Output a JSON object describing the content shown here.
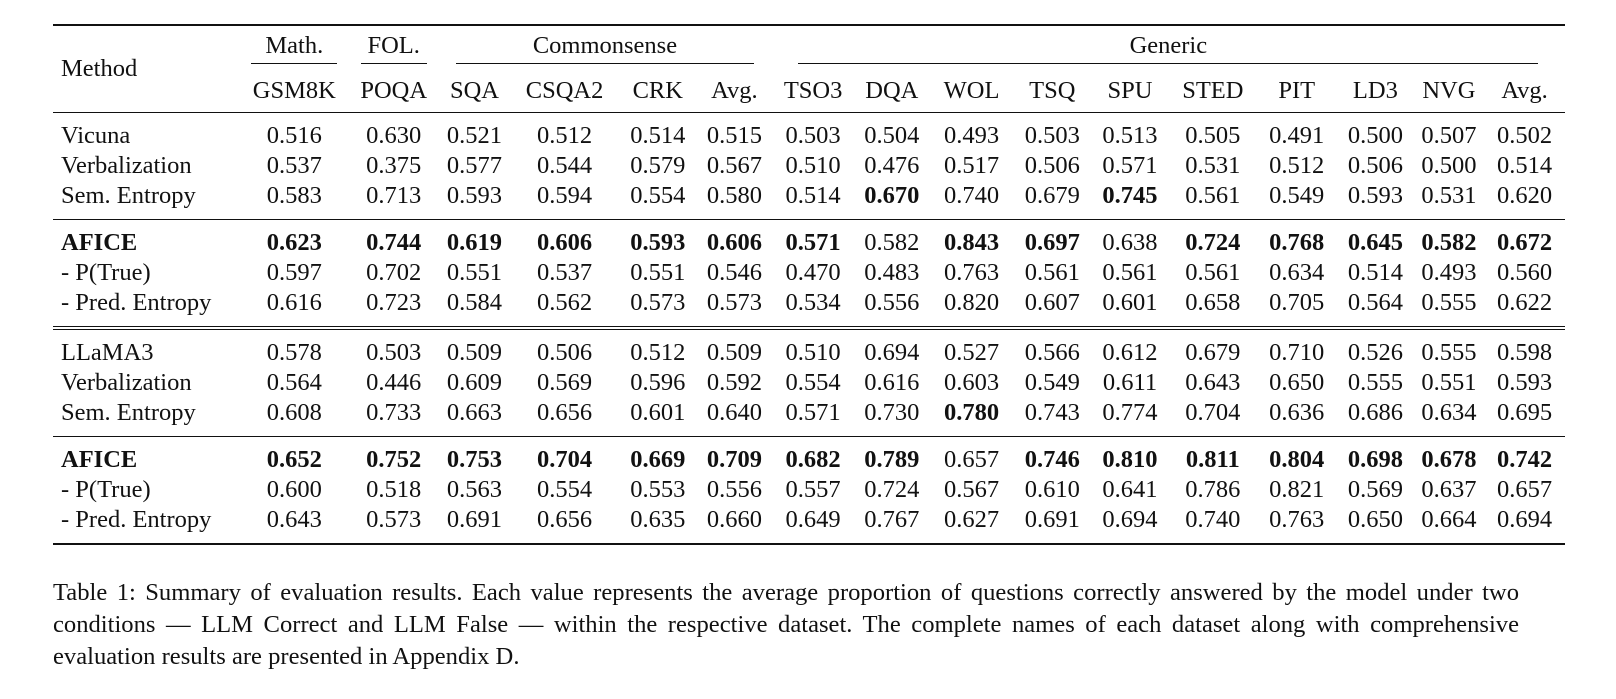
{
  "table": {
    "method_header": "Method",
    "groups": [
      {
        "label": "Math.",
        "span": 1
      },
      {
        "label": "FOL.",
        "span": 1
      },
      {
        "label": "Commonsense",
        "span": 4
      },
      {
        "label": "Generic",
        "span": 10
      }
    ],
    "columns": [
      "GSM8K",
      "POQA",
      "SQA",
      "CSQA2",
      "CRK",
      "Avg.",
      "TSO3",
      "DQA",
      "WOL",
      "TSQ",
      "SPU",
      "STED",
      "PIT",
      "LD3",
      "NVG",
      "Avg."
    ],
    "blocks": [
      [
        {
          "method": "Vicuna",
          "bold": false,
          "values": [
            "0.516",
            "0.630",
            "0.521",
            "0.512",
            "0.514",
            "0.515",
            "0.503",
            "0.504",
            "0.493",
            "0.503",
            "0.513",
            "0.505",
            "0.491",
            "0.500",
            "0.507",
            "0.502"
          ],
          "bold_cells": []
        },
        {
          "method": "Verbalization",
          "bold": false,
          "values": [
            "0.537",
            "0.375",
            "0.577",
            "0.544",
            "0.579",
            "0.567",
            "0.510",
            "0.476",
            "0.517",
            "0.506",
            "0.571",
            "0.531",
            "0.512",
            "0.506",
            "0.500",
            "0.514"
          ],
          "bold_cells": []
        },
        {
          "method": "Sem. Entropy",
          "bold": false,
          "values": [
            "0.583",
            "0.713",
            "0.593",
            "0.594",
            "0.554",
            "0.580",
            "0.514",
            "0.670",
            "0.740",
            "0.679",
            "0.745",
            "0.561",
            "0.549",
            "0.593",
            "0.531",
            "0.620"
          ],
          "bold_cells": [
            7,
            10
          ]
        }
      ],
      [
        {
          "method": "AFICE",
          "bold": true,
          "values": [
            "0.623",
            "0.744",
            "0.619",
            "0.606",
            "0.593",
            "0.606",
            "0.571",
            "0.582",
            "0.843",
            "0.697",
            "0.638",
            "0.724",
            "0.768",
            "0.645",
            "0.582",
            "0.672"
          ],
          "bold_cells": [
            0,
            1,
            2,
            3,
            4,
            5,
            6,
            8,
            9,
            11,
            12,
            13,
            14,
            15
          ]
        },
        {
          "method": "- P(True)",
          "bold": false,
          "values": [
            "0.597",
            "0.702",
            "0.551",
            "0.537",
            "0.551",
            "0.546",
            "0.470",
            "0.483",
            "0.763",
            "0.561",
            "0.561",
            "0.561",
            "0.634",
            "0.514",
            "0.493",
            "0.560"
          ],
          "bold_cells": []
        },
        {
          "method": "- Pred. Entropy",
          "bold": false,
          "values": [
            "0.616",
            "0.723",
            "0.584",
            "0.562",
            "0.573",
            "0.573",
            "0.534",
            "0.556",
            "0.820",
            "0.607",
            "0.601",
            "0.658",
            "0.705",
            "0.564",
            "0.555",
            "0.622"
          ],
          "bold_cells": []
        }
      ],
      [
        {
          "method": "LLaMA3",
          "bold": false,
          "values": [
            "0.578",
            "0.503",
            "0.509",
            "0.506",
            "0.512",
            "0.509",
            "0.510",
            "0.694",
            "0.527",
            "0.566",
            "0.612",
            "0.679",
            "0.710",
            "0.526",
            "0.555",
            "0.598"
          ],
          "bold_cells": []
        },
        {
          "method": "Verbalization",
          "bold": false,
          "values": [
            "0.564",
            "0.446",
            "0.609",
            "0.569",
            "0.596",
            "0.592",
            "0.554",
            "0.616",
            "0.603",
            "0.549",
            "0.611",
            "0.643",
            "0.650",
            "0.555",
            "0.551",
            "0.593"
          ],
          "bold_cells": []
        },
        {
          "method": "Sem. Entropy",
          "bold": false,
          "values": [
            "0.608",
            "0.733",
            "0.663",
            "0.656",
            "0.601",
            "0.640",
            "0.571",
            "0.730",
            "0.780",
            "0.743",
            "0.774",
            "0.704",
            "0.636",
            "0.686",
            "0.634",
            "0.695"
          ],
          "bold_cells": [
            8
          ]
        }
      ],
      [
        {
          "method": "AFICE",
          "bold": true,
          "values": [
            "0.652",
            "0.752",
            "0.753",
            "0.704",
            "0.669",
            "0.709",
            "0.682",
            "0.789",
            "0.657",
            "0.746",
            "0.810",
            "0.811",
            "0.804",
            "0.698",
            "0.678",
            "0.742"
          ],
          "bold_cells": [
            0,
            1,
            2,
            3,
            4,
            5,
            6,
            7,
            9,
            10,
            11,
            12,
            13,
            14,
            15
          ]
        },
        {
          "method": "- P(True)",
          "bold": false,
          "values": [
            "0.600",
            "0.518",
            "0.563",
            "0.554",
            "0.553",
            "0.556",
            "0.557",
            "0.724",
            "0.567",
            "0.610",
            "0.641",
            "0.786",
            "0.821",
            "0.569",
            "0.637",
            "0.657"
          ],
          "bold_cells": []
        },
        {
          "method": "- Pred. Entropy",
          "bold": false,
          "values": [
            "0.643",
            "0.573",
            "0.691",
            "0.656",
            "0.635",
            "0.660",
            "0.649",
            "0.767",
            "0.627",
            "0.691",
            "0.694",
            "0.740",
            "0.763",
            "0.650",
            "0.664",
            "0.694"
          ],
          "bold_cells": []
        }
      ]
    ]
  },
  "caption": "Table 1: Summary of evaluation results. Each value represents the average proportion of questions correctly answered by the model under two conditions — LLM Correct and LLM False — within the respective dataset. The complete names of each dataset along with comprehensive evaluation results are presented in Appendix D."
}
